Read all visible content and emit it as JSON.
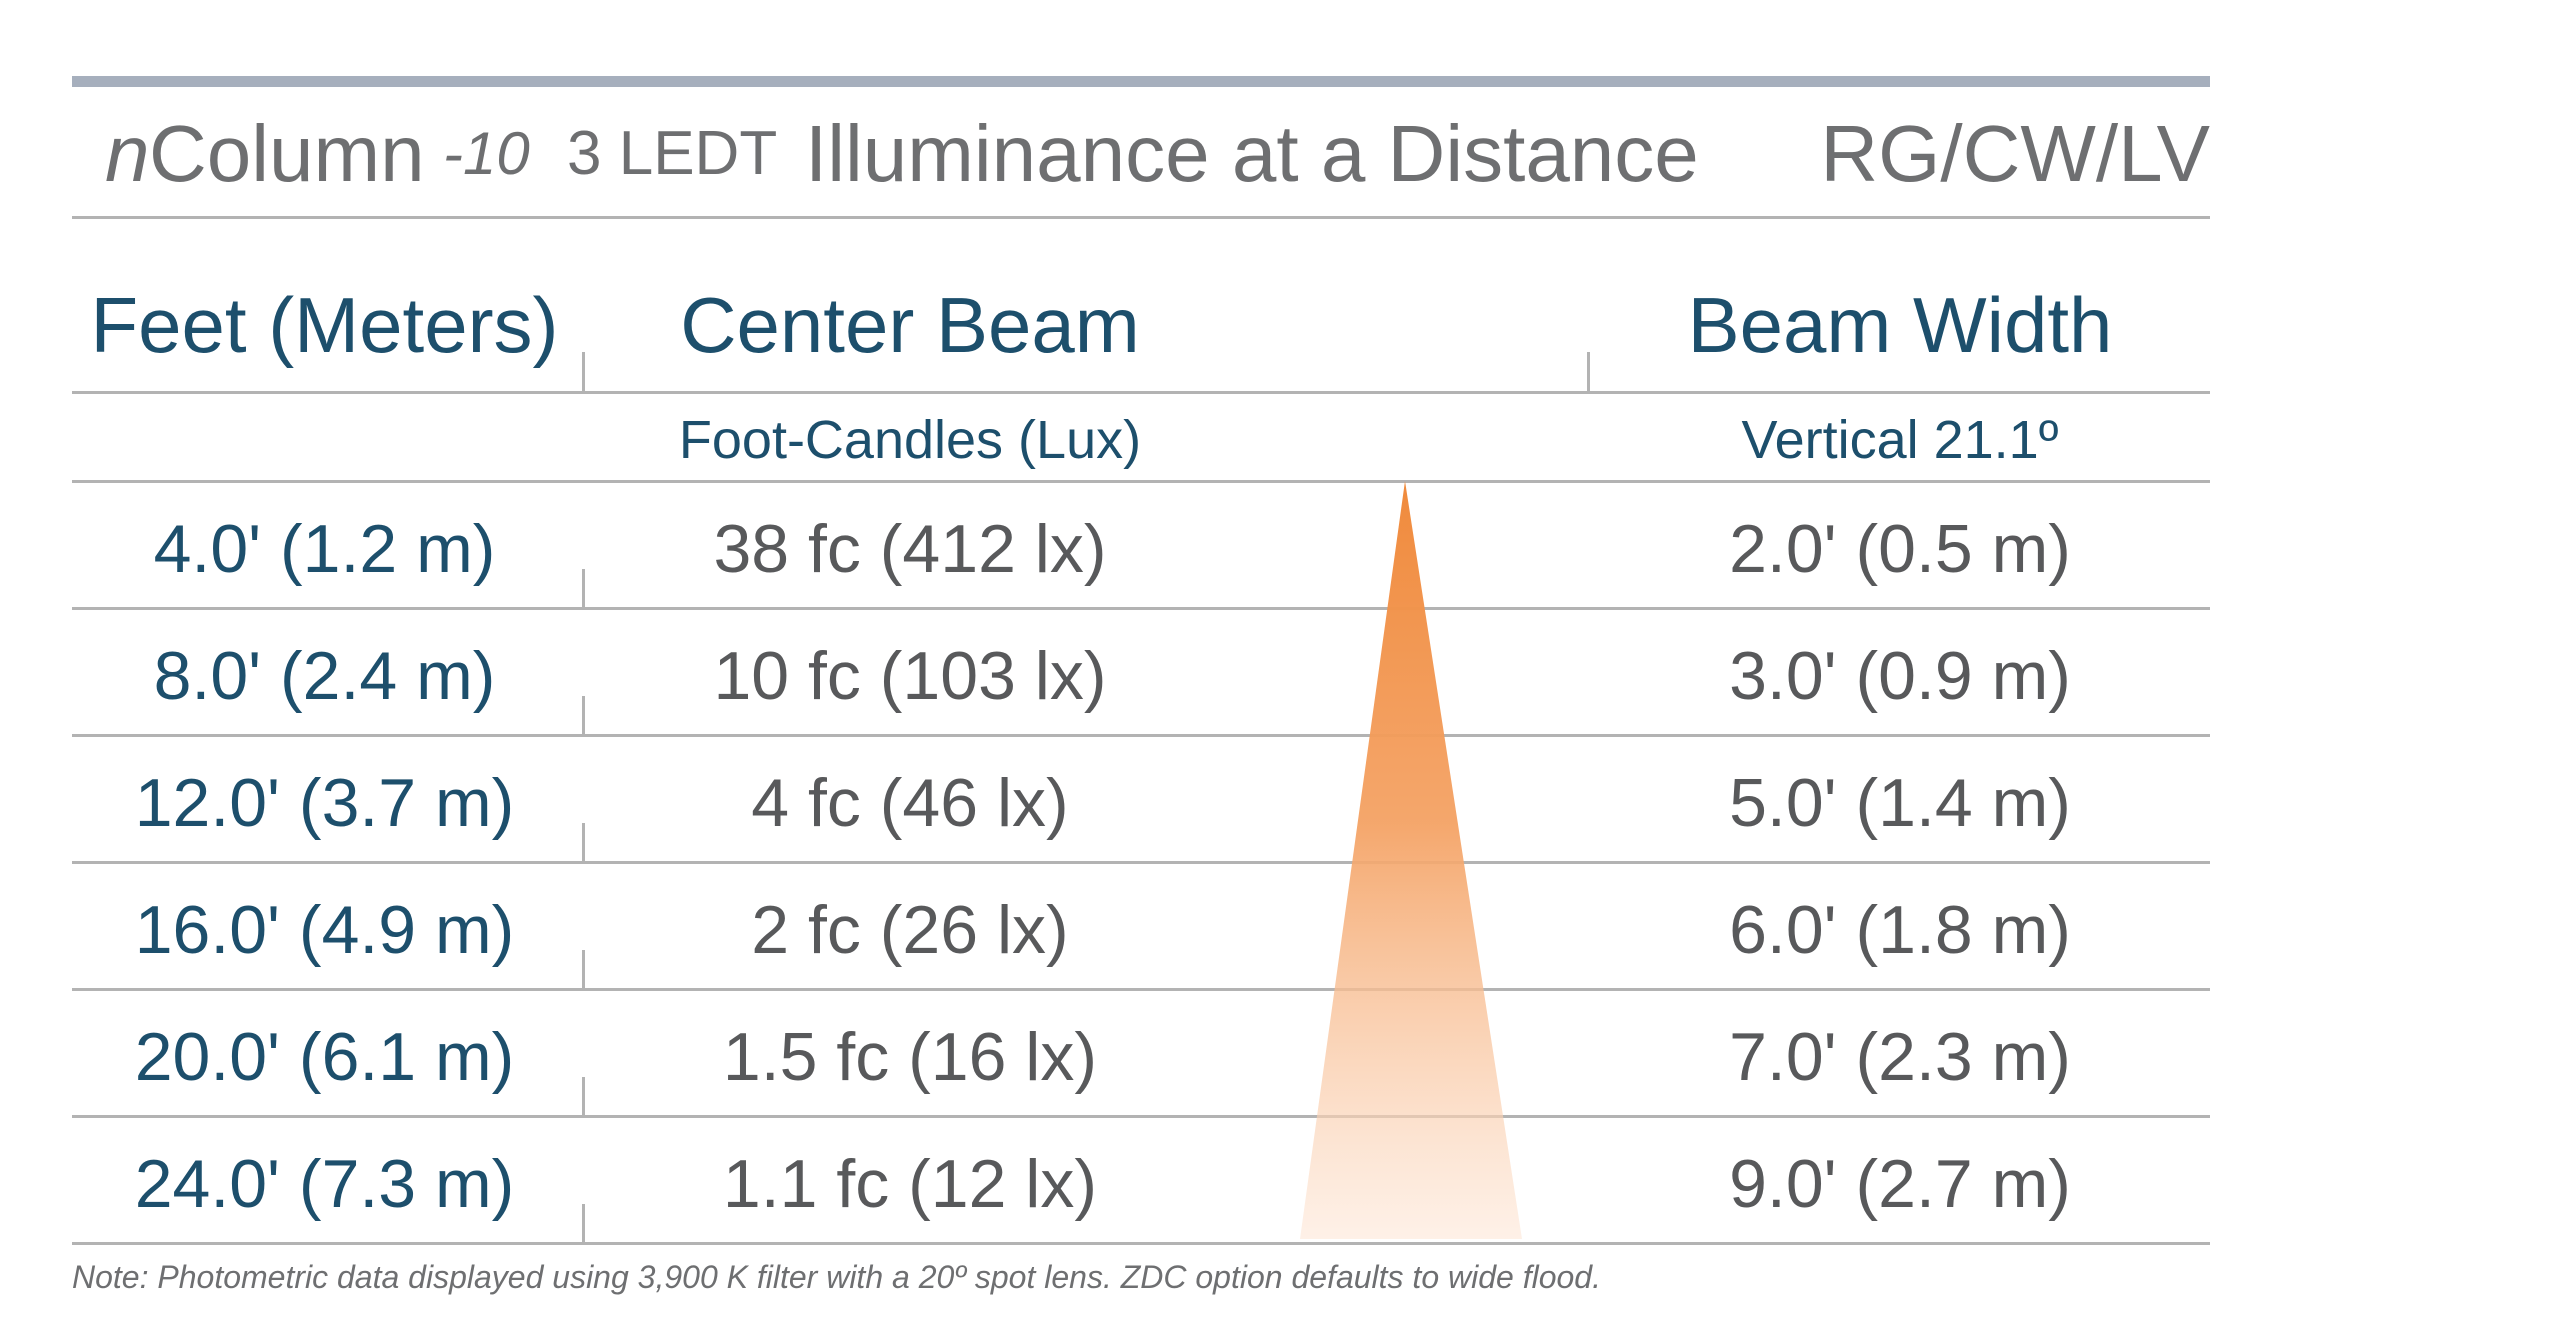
{
  "chart_data": {
    "type": "table",
    "title": {
      "prefix_n": "n",
      "product": "Column",
      "suffix": "-10",
      "ledt": "3 LEDT",
      "text": "Illuminance at a Distance",
      "model": "RG/CW/LV"
    },
    "columns": [
      "Feet (Meters)",
      "Center Beam",
      "Beam Width"
    ],
    "subheaders": [
      "",
      "Foot-Candles (Lux)",
      "Vertical 21.1º"
    ],
    "rows": [
      {
        "distance": "4.0' (1.2 m)",
        "center_beam": "38 fc (412 lx)",
        "beam_width": "2.0' (0.5 m)"
      },
      {
        "distance": "8.0' (2.4 m)",
        "center_beam": "10 fc (103 lx)",
        "beam_width": "3.0' (0.9 m)"
      },
      {
        "distance": "12.0' (3.7 m)",
        "center_beam": "4 fc (46 lx)",
        "beam_width": "5.0' (1.4 m)"
      },
      {
        "distance": "16.0' (4.9 m)",
        "center_beam": "2 fc (26 lx)",
        "beam_width": "6.0' (1.8 m)"
      },
      {
        "distance": "20.0' (6.1 m)",
        "center_beam": "1.5 fc (16 lx)",
        "beam_width": "7.0' (2.3 m)"
      },
      {
        "distance": "24.0' (7.3 m)",
        "center_beam": "1.1 fc (12 lx)",
        "beam_width": "9.0' (2.7 m)"
      }
    ],
    "beam_color": "#f08a3c",
    "note": "Note: Photometric data displayed using 3,900 K filter with a 20º spot lens. ZDC option defaults to wide flood."
  }
}
